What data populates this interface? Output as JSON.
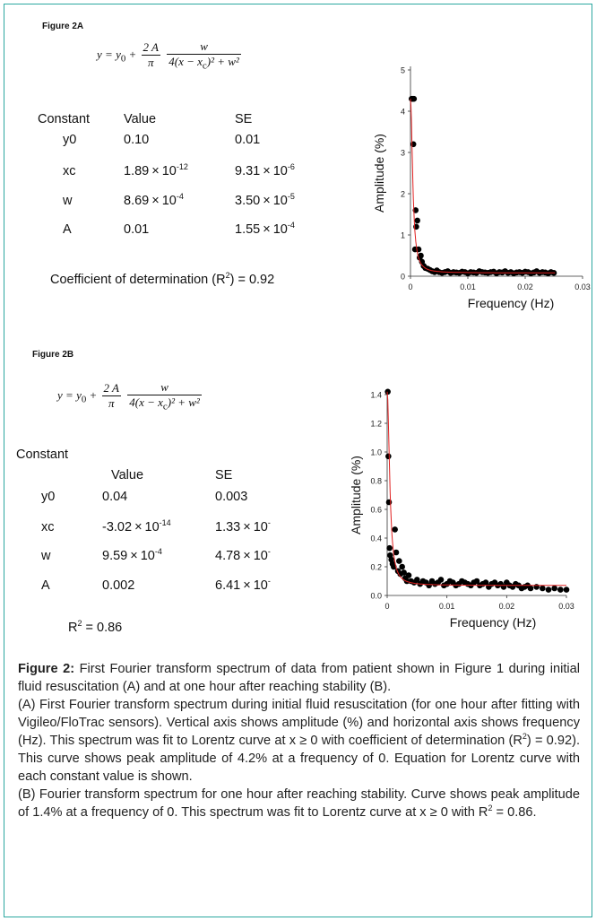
{
  "panels": [
    {
      "figure_label": "Figure 2A",
      "equation": {
        "y": "y",
        "y0_sub": "0",
        "coef_num": "2 A",
        "coef_den": "π",
        "w": "w",
        "den": "4(x − x",
        "xc_sub": "c",
        "den_tail": ")² + w²"
      },
      "table": {
        "col_constant": "Constant",
        "col_value": "Value",
        "col_se": "SE",
        "rows": [
          {
            "name": "y0",
            "value": "0.10",
            "value_exp": "",
            "se": "0.01",
            "se_exp": ""
          },
          {
            "name": "xc",
            "value": "1.89",
            "value_exp": "-12",
            "se": "9.31",
            "se_exp": "-6"
          },
          {
            "name": "w",
            "value": "8.69",
            "value_exp": "-4",
            "se": "3.50",
            "se_exp": "-5"
          },
          {
            "name": "A",
            "value": "0.01",
            "value_exp": "",
            "se": "1.55",
            "se_exp": "-4"
          }
        ]
      },
      "r2_text": "Coefficient of determination (R",
      "r2_sup": "2",
      "r2_tail": ") = 0.92"
    },
    {
      "figure_label": "Figure 2B",
      "equation": {
        "y": "y",
        "y0_sub": "0",
        "coef_num": "2 A",
        "coef_den": "π",
        "w": "w",
        "den": "4(x − x",
        "xc_sub": "c",
        "den_tail": ")² + w²"
      },
      "table": {
        "col_constant": "Constant",
        "col_value": "Value",
        "col_se": "SE",
        "rows": [
          {
            "name": "y0",
            "value": "0.04",
            "value_exp": "",
            "se": "0.003",
            "se_exp": ""
          },
          {
            "name": "xc",
            "value": "-3.02",
            "value_exp": "-14",
            "se": "1.33",
            "se_exp": "-"
          },
          {
            "name": "w",
            "value": "9.59",
            "value_exp": "-4",
            "se": "4.78",
            "se_exp": "-"
          },
          {
            "name": "A",
            "value": "0.002",
            "value_exp": "",
            "se": "6.41",
            "se_exp": "-"
          }
        ]
      },
      "r2_text": "R",
      "r2_sup": "2",
      "r2_tail": " = 0.86"
    }
  ],
  "times_symbol": "×",
  "ten": "10",
  "chart_data": [
    {
      "type": "scatter",
      "title": "",
      "xlabel": "Frequency (Hz)",
      "ylabel": "Amplitude (%)",
      "xlim": [
        0,
        0.03
      ],
      "ylim": [
        0,
        5
      ],
      "xticks": [
        "0",
        "0.01",
        "0.02",
        "0.03"
      ],
      "yticks": [
        "0",
        "1",
        "2",
        "3",
        "4",
        "5"
      ],
      "grid": false,
      "fit_color": "#e02020",
      "points_color": "#000000",
      "fit": {
        "model": "lorentz",
        "y0": 0.1,
        "xc": 0,
        "w": 0.000869,
        "A": 0.01
      },
      "points": {
        "x": [
          0.0002,
          0.0004,
          0.0005,
          0.0006,
          0.0008,
          0.0009,
          0.001,
          0.0012,
          0.0014,
          0.0016,
          0.0018,
          0.002,
          0.0023,
          0.0026,
          0.003,
          0.0034,
          0.0038,
          0.0042,
          0.0046,
          0.005,
          0.0055,
          0.006,
          0.0065,
          0.007,
          0.0075,
          0.008,
          0.0085,
          0.009,
          0.0095,
          0.01,
          0.0105,
          0.011,
          0.0115,
          0.012,
          0.0125,
          0.013,
          0.0135,
          0.014,
          0.0145,
          0.015,
          0.0155,
          0.016,
          0.0165,
          0.017,
          0.0175,
          0.018,
          0.0185,
          0.019,
          0.0195,
          0.02,
          0.0205,
          0.021,
          0.0215,
          0.022,
          0.0225,
          0.023,
          0.0235,
          0.024,
          0.0245,
          0.025
        ],
        "y": [
          4.3,
          4.3,
          3.2,
          4.3,
          0.65,
          1.6,
          1.2,
          1.35,
          0.65,
          0.45,
          0.5,
          0.35,
          0.25,
          0.2,
          0.18,
          0.15,
          0.12,
          0.1,
          0.14,
          0.1,
          0.08,
          0.1,
          0.12,
          0.08,
          0.1,
          0.09,
          0.08,
          0.11,
          0.1,
          0.07,
          0.1,
          0.09,
          0.08,
          0.12,
          0.1,
          0.09,
          0.08,
          0.1,
          0.11,
          0.07,
          0.1,
          0.09,
          0.12,
          0.08,
          0.1,
          0.07,
          0.09,
          0.1,
          0.08,
          0.11,
          0.1,
          0.07,
          0.09,
          0.12,
          0.08,
          0.1,
          0.09,
          0.07,
          0.1,
          0.08
        ]
      }
    },
    {
      "type": "scatter",
      "title": "",
      "xlabel": "Frequency (Hz)",
      "ylabel": "Amplitude (%)",
      "xlim": [
        0,
        0.03
      ],
      "ylim": [
        0,
        1.4
      ],
      "xticks": [
        "0",
        "0.01",
        "0.02",
        "0.03"
      ],
      "yticks": [
        "0.0",
        "0.2",
        "0.4",
        "0.6",
        "0.8",
        "1.0",
        "1.2",
        "1.4"
      ],
      "grid": false,
      "fit_color": "#e02020",
      "points_color": "#000000",
      "fit": {
        "model": "lorentz",
        "y0": 0.04,
        "xc": 0,
        "w": 0.000959,
        "A": 0.002
      },
      "points": {
        "x": [
          0.0001,
          0.0002,
          0.0003,
          0.0004,
          0.0005,
          0.0007,
          0.0009,
          0.0011,
          0.0013,
          0.0015,
          0.0018,
          0.002,
          0.0022,
          0.0025,
          0.0028,
          0.003,
          0.0033,
          0.0036,
          0.004,
          0.0045,
          0.005,
          0.0055,
          0.006,
          0.0065,
          0.007,
          0.0075,
          0.008,
          0.0085,
          0.009,
          0.0095,
          0.01,
          0.0105,
          0.011,
          0.0115,
          0.012,
          0.0125,
          0.013,
          0.0135,
          0.014,
          0.0145,
          0.015,
          0.0155,
          0.016,
          0.0165,
          0.017,
          0.0175,
          0.018,
          0.0185,
          0.019,
          0.0195,
          0.02,
          0.0205,
          0.021,
          0.0215,
          0.022,
          0.0225,
          0.023,
          0.0235,
          0.024,
          0.025,
          0.026,
          0.027,
          0.028,
          0.029,
          0.03
        ],
        "y": [
          1.42,
          0.97,
          0.65,
          0.33,
          0.28,
          0.25,
          0.22,
          0.2,
          0.46,
          0.3,
          0.17,
          0.24,
          0.15,
          0.2,
          0.16,
          0.12,
          0.1,
          0.14,
          0.1,
          0.09,
          0.11,
          0.08,
          0.1,
          0.09,
          0.07,
          0.1,
          0.08,
          0.09,
          0.11,
          0.07,
          0.08,
          0.1,
          0.09,
          0.07,
          0.08,
          0.1,
          0.09,
          0.08,
          0.07,
          0.09,
          0.1,
          0.07,
          0.08,
          0.09,
          0.06,
          0.08,
          0.09,
          0.07,
          0.08,
          0.06,
          0.09,
          0.07,
          0.06,
          0.08,
          0.07,
          0.05,
          0.06,
          0.07,
          0.05,
          0.06,
          0.05,
          0.04,
          0.05,
          0.04,
          0.04
        ]
      }
    }
  ],
  "caption": {
    "fig_label": "Figure 2:",
    "p1": " First Fourier transform spectrum of data from patient shown in Figure 1 during initial fluid resuscitation (A) and at one hour after reaching stability (B).",
    "p2a": "(A) First Fourier transform spectrum during initial fluid resuscitation (for one hour after fitting with Vigileo/FloTrac sensors). Vertical axis shows amplitude (%) and horizontal axis shows frequency (Hz). This spectrum was fit to Lorentz curve at x ≥ 0 with coefficient of determination (R",
    "p2sup": "2",
    "p2b": ") = 0.92). This curve shows peak amplitude of 4.2% at a frequency of 0. Equation for Lorentz curve with each constant value is shown.",
    "p3a": "(B) Fourier transform spectrum for one hour after reaching stability. Curve shows peak amplitude of 1.4% at a frequency of 0. This spectrum was fit to Lorentz curve at x ≥ 0 with R",
    "p3sup": "2",
    "p3b": " = 0.86."
  }
}
